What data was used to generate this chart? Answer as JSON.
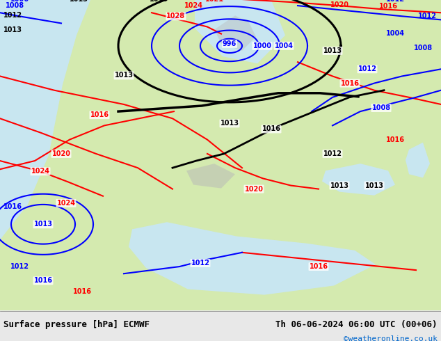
{
  "title_left": "Surface pressure [hPa] ECMWF",
  "title_right": "Th 06-06-2024 06:00 UTC (00+06)",
  "watermark": "©weatheronline.co.uk",
  "sea_color": "#c8e6f0",
  "land_color": "#d4eaaf",
  "gray_terrain_color": "#b8b8b8",
  "fig_width": 6.34,
  "fig_height": 4.9,
  "dpi": 100,
  "bottom_bar_color": "#e8e8e8"
}
